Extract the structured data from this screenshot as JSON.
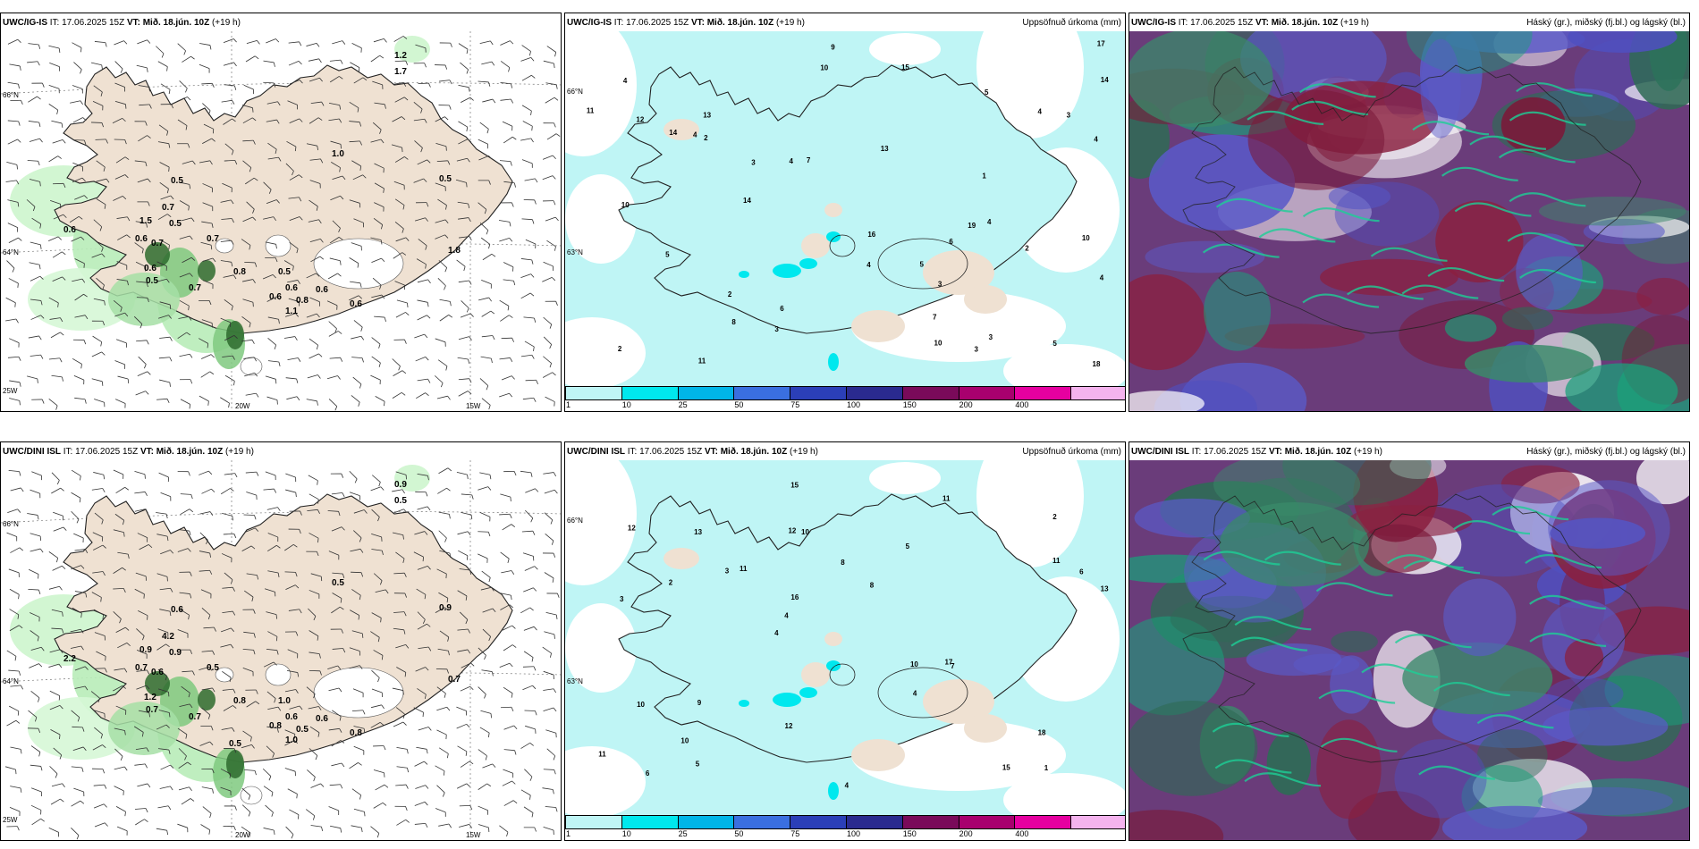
{
  "panels": [
    {
      "model": "UWC/IG-IS",
      "it": "IT: 17.06.2025 15Z",
      "vt": "VT: Mið. 18.jún. 10Z",
      "lead": "(+19 h)",
      "right": "",
      "type": "wind"
    },
    {
      "model": "UWC/IG-IS",
      "it": "IT: 17.06.2025 15Z",
      "vt": "VT: Mið. 18.jún. 10Z",
      "lead": "(+19 h)",
      "right": "Uppsöfnuð úrkoma (mm)",
      "type": "precip"
    },
    {
      "model": "UWC/IG-IS",
      "it": "IT: 17.06.2025 15Z",
      "vt": "VT: Mið. 18.jún. 10Z",
      "lead": "(+19 h)",
      "right": "Háský (gr.), miðský (fj.bl.) og lágský (bl.)",
      "type": "cloud"
    },
    {
      "model": "UWC/DINI ISL",
      "it": "IT: 17.06.2025 15Z",
      "vt": "VT: Mið. 18.jún. 10Z",
      "lead": "(+19 h)",
      "right": "",
      "type": "wind"
    },
    {
      "model": "UWC/DINI ISL",
      "it": "IT: 17.06.2025 15Z",
      "vt": "VT: Mið. 18.jún. 10Z",
      "lead": "(+19 h)",
      "right": "Uppsöfnuð úrkoma (mm)",
      "type": "precip"
    },
    {
      "model": "UWC/DINI ISL",
      "it": "IT: 17.06.2025 15Z",
      "vt": "VT: Mið. 18.jún. 10Z",
      "lead": "(+19 h)",
      "right": "Háský (gr.), miðský (fj.bl.) og lágský (bl.)",
      "type": "cloud"
    }
  ],
  "grid_labels": {
    "lat_66": "66°N",
    "lat_64": "64°N",
    "lat_63": "63°N",
    "lon_20w": "20W",
    "lon_15w": "15W",
    "lon_25w": "25W"
  },
  "legend": {
    "ticks": [
      "1",
      "10",
      "25",
      "50",
      "75",
      "100",
      "150",
      "200",
      "400"
    ],
    "colors": [
      "#bff5f5",
      "#00e8ee",
      "#00b5e8",
      "#3a6fe0",
      "#2b3fb8",
      "#2a2a8f",
      "#7a0a5a",
      "#a8006e",
      "#e600a0",
      "#f4b3ee"
    ]
  },
  "wind_labels_top": [
    "1.2",
    "1.7",
    "1.0",
    "0.5",
    "0.5",
    "0.7",
    "0.6",
    "1.5",
    "0.5",
    "0.6",
    "0.7",
    "0.7",
    "0.6",
    "0.8",
    "0.5",
    "0.5",
    "0.7",
    "0.6",
    "0.6",
    "0.8",
    "0.6",
    "1.1",
    "1.8",
    "0.6"
  ],
  "wind_labels_bottom": [
    "0.9",
    "0.5",
    "0.5",
    "0.6",
    "0.9",
    "4.2",
    "2.2",
    "0.9",
    "0.9",
    "0.7",
    "0.6",
    "0.5",
    "1.2",
    "0.8",
    "1.0",
    "0.7",
    "0.7",
    "0.8",
    "0.6",
    "0.5",
    "0.6",
    "1.0",
    "0.7",
    "0.8",
    "0.5"
  ],
  "precip_top": [
    "1",
    "3",
    "2",
    "3",
    "4",
    "3",
    "7",
    "4",
    "5",
    "4",
    "13",
    "15",
    "7",
    "10",
    "11",
    "10",
    "13",
    "3",
    "6",
    "6",
    "4",
    "4",
    "2",
    "17",
    "14",
    "18",
    "11",
    "16",
    "12",
    "10",
    "9",
    "4",
    "10",
    "8",
    "5",
    "14",
    "14",
    "19",
    "3",
    "4",
    "5",
    "2",
    "3",
    "2",
    "5",
    "4"
  ],
  "precip_bottom": [
    "1",
    "3",
    "2",
    "4",
    "5",
    "6",
    "12",
    "8",
    "10",
    "11",
    "11",
    "10",
    "10",
    "8",
    "7",
    "12",
    "15",
    "13",
    "10",
    "11",
    "4",
    "12",
    "16",
    "13",
    "11",
    "9",
    "15",
    "18",
    "17",
    "4",
    "3",
    "2",
    "4",
    "5",
    "6"
  ]
}
